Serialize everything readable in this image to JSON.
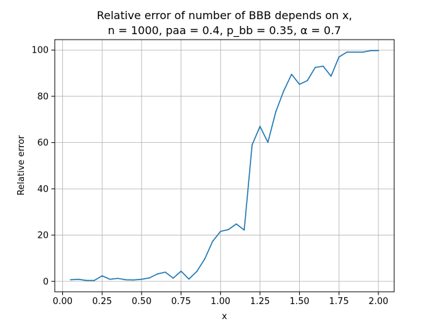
{
  "chart_data": {
    "type": "line",
    "title_line1": "Relative error of number of BBB depends on x,",
    "title_line2": "n = 1000, paa = 0.4, p_bb = 0.35, α = 0.7",
    "xlabel": "x",
    "ylabel": "Relative error",
    "xlim": [
      -0.05,
      2.1
    ],
    "ylim": [
      -4.5,
      104.5
    ],
    "xticks": [
      0.0,
      0.25,
      0.5,
      0.75,
      1.0,
      1.25,
      1.5,
      1.75,
      2.0
    ],
    "xtick_labels": [
      "0.00",
      "0.25",
      "0.50",
      "0.75",
      "1.00",
      "1.25",
      "1.50",
      "1.75",
      "2.00"
    ],
    "yticks": [
      0,
      20,
      40,
      60,
      80,
      100
    ],
    "ytick_labels": [
      "0",
      "20",
      "40",
      "60",
      "80",
      "100"
    ],
    "grid": true,
    "line_color": "#1f77b4",
    "series": [
      {
        "x": [
          0.05,
          0.1,
          0.15,
          0.2,
          0.25,
          0.3,
          0.35,
          0.4,
          0.45,
          0.5,
          0.55,
          0.6,
          0.65,
          0.7,
          0.75,
          0.8,
          0.85,
          0.9,
          0.95,
          1.0,
          1.05,
          1.1,
          1.15,
          1.2,
          1.25,
          1.3,
          1.35,
          1.4,
          1.45,
          1.5,
          1.55,
          1.6,
          1.65,
          1.7,
          1.75,
          1.8,
          1.85,
          1.9,
          1.95,
          2.0
        ],
        "values": [
          0.7,
          0.9,
          0.4,
          0.4,
          2.4,
          0.9,
          1.3,
          0.7,
          0.6,
          0.9,
          1.5,
          3.2,
          4.0,
          1.4,
          4.4,
          1.0,
          4.3,
          9.7,
          17.3,
          21.6,
          22.4,
          24.8,
          22.2,
          59.0,
          67.0,
          60.1,
          73.3,
          82.3,
          89.5,
          85.2,
          86.8,
          92.5,
          93.0,
          88.7,
          97.0,
          99.1,
          99.1,
          99.1,
          99.7,
          99.8
        ]
      }
    ]
  }
}
